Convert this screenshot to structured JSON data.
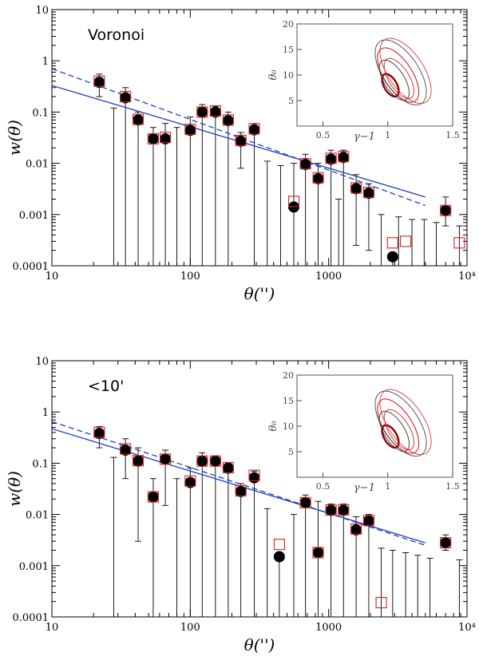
{
  "chart_data": [
    {
      "type": "scatter",
      "panel_label": "Voronoi",
      "xlabel": "θ('')",
      "ylabel": "w(θ)",
      "xscale": "log",
      "yscale": "log",
      "xlim": [
        10,
        10000
      ],
      "ylim": [
        0.0001,
        10
      ],
      "xtick_labels": [
        "10",
        "100",
        "1000",
        "10⁴"
      ],
      "xtick_values": [
        10,
        100,
        1000,
        10000
      ],
      "ytick_labels": [
        "0.0001",
        "0.001",
        "0.01",
        "0.1",
        "1",
        "10"
      ],
      "ytick_values": [
        0.0001,
        0.001,
        0.01,
        0.1,
        1,
        10
      ],
      "series": [
        {
          "name": "filled circles",
          "color": "#000000",
          "points": [
            {
              "x": 22,
              "y": 0.38,
              "lo": 0.2,
              "hi": 0.55
            },
            {
              "x": 34,
              "y": 0.19,
              "lo": 0.0001,
              "hi": 0.3
            },
            {
              "x": 42,
              "y": 0.07,
              "lo": 0.0001,
              "hi": 0.1
            },
            {
              "x": 54,
              "y": 0.03,
              "lo": 0.0001,
              "hi": 0.05
            },
            {
              "x": 66,
              "y": 0.03,
              "lo": 0.0001,
              "hi": 0.06
            },
            {
              "x": 100,
              "y": 0.044,
              "lo": 0.0001,
              "hi": 0.08
            },
            {
              "x": 122,
              "y": 0.1,
              "lo": 0.0001,
              "hi": 0.14
            },
            {
              "x": 152,
              "y": 0.1,
              "lo": 0.0001,
              "hi": 0.13
            },
            {
              "x": 188,
              "y": 0.068,
              "lo": 0.0001,
              "hi": 0.1
            },
            {
              "x": 232,
              "y": 0.027,
              "lo": 0.008,
              "hi": 0.04
            },
            {
              "x": 290,
              "y": 0.045,
              "lo": 0.0001,
              "hi": 0.06
            },
            {
              "x": 560,
              "y": 0.0014,
              "lo": 0.0001,
              "hi": 0.01
            },
            {
              "x": 680,
              "y": 0.0095,
              "lo": 0.0001,
              "hi": 0.015
            },
            {
              "x": 840,
              "y": 0.005,
              "lo": 0.0001,
              "hi": 0.01
            },
            {
              "x": 1040,
              "y": 0.012,
              "lo": 0.0001,
              "hi": 0.018
            },
            {
              "x": 1280,
              "y": 0.013,
              "lo": 0.0001,
              "hi": 0.018
            },
            {
              "x": 1580,
              "y": 0.0032,
              "lo": 0.00025,
              "hi": 0.006
            },
            {
              "x": 1950,
              "y": 0.0026,
              "lo": 0.0002,
              "hi": 0.004
            },
            {
              "x": 2900,
              "y": 0.00015,
              "lo": 0.0001,
              "hi": 0.00015
            },
            {
              "x": 7000,
              "y": 0.0012,
              "lo": 0.0006,
              "hi": 0.0022
            }
          ]
        },
        {
          "name": "open squares",
          "color": "#d62020",
          "points": [
            {
              "x": 22,
              "y": 0.4
            },
            {
              "x": 34,
              "y": 0.2
            },
            {
              "x": 42,
              "y": 0.072
            },
            {
              "x": 54,
              "y": 0.03
            },
            {
              "x": 66,
              "y": 0.032
            },
            {
              "x": 100,
              "y": 0.046
            },
            {
              "x": 122,
              "y": 0.1
            },
            {
              "x": 152,
              "y": 0.105
            },
            {
              "x": 188,
              "y": 0.07
            },
            {
              "x": 232,
              "y": 0.028
            },
            {
              "x": 290,
              "y": 0.047
            },
            {
              "x": 560,
              "y": 0.0018
            },
            {
              "x": 680,
              "y": 0.0098
            },
            {
              "x": 840,
              "y": 0.0052
            },
            {
              "x": 1040,
              "y": 0.0125
            },
            {
              "x": 1280,
              "y": 0.0135
            },
            {
              "x": 1580,
              "y": 0.0033
            },
            {
              "x": 1950,
              "y": 0.0027
            },
            {
              "x": 2900,
              "y": 0.00028
            },
            {
              "x": 3600,
              "y": 0.0003
            },
            {
              "x": 7000,
              "y": 0.0012
            },
            {
              "x": 8800,
              "y": 0.00028
            }
          ]
        }
      ],
      "bare_error_bars": [
        {
          "x": 28,
          "hi": 0.12
        },
        {
          "x": 80,
          "hi": 0.05
        },
        {
          "x": 360,
          "hi": 0.011
        },
        {
          "x": 450,
          "hi": 0.009
        },
        {
          "x": 1180,
          "hi": 0.002
        },
        {
          "x": 2400,
          "hi": 0.001
        },
        {
          "x": 3200,
          "hi": 0.0009
        },
        {
          "x": 4000,
          "hi": 0.0008
        },
        {
          "x": 4900,
          "hi": 0.0008
        },
        {
          "x": 6000,
          "hi": 0.0007
        },
        {
          "x": 8800,
          "hi": 0.0006
        }
      ],
      "fits": [
        {
          "name": "solid fit",
          "style": "solid",
          "color": "#1f3fbf",
          "x": [
            10,
            5000
          ],
          "y": [
            0.33,
            0.0022
          ]
        },
        {
          "name": "dashed fit",
          "style": "dashed",
          "color": "#1f3fbf",
          "x": [
            10,
            5000
          ],
          "y": [
            0.7,
            0.0015
          ]
        }
      ],
      "inset": {
        "xlabel": "γ−1",
        "ylabel": "θ₀",
        "xlim": [
          0.3,
          1.5
        ],
        "ylim": [
          0,
          20
        ],
        "xtick_labels": [
          "0.5",
          "1",
          "1.5"
        ],
        "xtick_values": [
          0.5,
          1,
          1.5
        ],
        "ytick_labels": [
          "5",
          "10",
          "15",
          "20"
        ],
        "ytick_values": [
          5,
          10,
          15,
          20
        ],
        "contour_colors": [
          "#8b0000",
          "#333333",
          "#d62020"
        ]
      }
    },
    {
      "type": "scatter",
      "panel_label": "<10'",
      "xlabel": "θ('')",
      "ylabel": "w(θ)",
      "xscale": "log",
      "yscale": "log",
      "xlim": [
        10,
        10000
      ],
      "ylim": [
        0.0001,
        10
      ],
      "xtick_labels": [
        "10",
        "100",
        "1000",
        "10⁴"
      ],
      "xtick_values": [
        10,
        100,
        1000,
        10000
      ],
      "ytick_labels": [
        "0.0001",
        "0.001",
        "0.01",
        "0.1",
        "1",
        "10"
      ],
      "ytick_values": [
        0.0001,
        0.001,
        0.01,
        0.1,
        1,
        10
      ],
      "series": [
        {
          "name": "filled circles",
          "color": "#000000",
          "points": [
            {
              "x": 22,
              "y": 0.38,
              "lo": 0.2,
              "hi": 0.52
            },
            {
              "x": 34,
              "y": 0.18,
              "lo": 0.05,
              "hi": 0.3
            },
            {
              "x": 42,
              "y": 0.11,
              "lo": 0.003,
              "hi": 0.2
            },
            {
              "x": 54,
              "y": 0.022,
              "lo": 0.0001,
              "hi": 0.05
            },
            {
              "x": 66,
              "y": 0.12,
              "lo": 0.015,
              "hi": 0.18
            },
            {
              "x": 100,
              "y": 0.042,
              "lo": 0.0001,
              "hi": 0.08
            },
            {
              "x": 122,
              "y": 0.11,
              "lo": 0.0001,
              "hi": 0.16
            },
            {
              "x": 152,
              "y": 0.11,
              "lo": 0.0001,
              "hi": 0.14
            },
            {
              "x": 188,
              "y": 0.08,
              "lo": 0.0001,
              "hi": 0.1
            },
            {
              "x": 232,
              "y": 0.028,
              "lo": 0.0001,
              "hi": 0.04
            },
            {
              "x": 290,
              "y": 0.052,
              "lo": 0.0001,
              "hi": 0.07
            },
            {
              "x": 440,
              "y": 0.0015,
              "lo": 0.0001,
              "hi": 0.0015
            },
            {
              "x": 680,
              "y": 0.017,
              "lo": 0.0001,
              "hi": 0.024
            },
            {
              "x": 840,
              "y": 0.0018,
              "lo": 0.0001,
              "hi": 0.018
            },
            {
              "x": 1040,
              "y": 0.012,
              "lo": 0.0001,
              "hi": 0.016
            },
            {
              "x": 1280,
              "y": 0.012,
              "lo": 0.0001,
              "hi": 0.016
            },
            {
              "x": 1580,
              "y": 0.005,
              "lo": 0.0001,
              "hi": 0.009
            },
            {
              "x": 1950,
              "y": 0.0075,
              "lo": 0.0001,
              "hi": 0.01
            },
            {
              "x": 7000,
              "y": 0.0028,
              "lo": 0.002,
              "hi": 0.004
            }
          ]
        },
        {
          "name": "open squares",
          "color": "#d62020",
          "points": [
            {
              "x": 22,
              "y": 0.4
            },
            {
              "x": 34,
              "y": 0.19
            },
            {
              "x": 42,
              "y": 0.112
            },
            {
              "x": 54,
              "y": 0.022
            },
            {
              "x": 66,
              "y": 0.12
            },
            {
              "x": 100,
              "y": 0.045
            },
            {
              "x": 122,
              "y": 0.11
            },
            {
              "x": 152,
              "y": 0.11
            },
            {
              "x": 188,
              "y": 0.082
            },
            {
              "x": 232,
              "y": 0.029
            },
            {
              "x": 290,
              "y": 0.058
            },
            {
              "x": 440,
              "y": 0.0026
            },
            {
              "x": 680,
              "y": 0.017
            },
            {
              "x": 840,
              "y": 0.0018
            },
            {
              "x": 1040,
              "y": 0.0122
            },
            {
              "x": 1280,
              "y": 0.0123
            },
            {
              "x": 1580,
              "y": 0.0052
            },
            {
              "x": 1950,
              "y": 0.0076
            },
            {
              "x": 2400,
              "y": 0.00019
            },
            {
              "x": 7000,
              "y": 0.0028
            }
          ]
        }
      ],
      "bare_error_bars": [
        {
          "x": 28,
          "hi": 0.13
        },
        {
          "x": 80,
          "hi": 0.05
        },
        {
          "x": 360,
          "hi": 0.013
        },
        {
          "x": 560,
          "hi": 0.01
        },
        {
          "x": 2400,
          "hi": 0.0022
        },
        {
          "x": 2900,
          "hi": 0.002
        },
        {
          "x": 3600,
          "hi": 0.0018
        },
        {
          "x": 4400,
          "hi": 0.0016
        },
        {
          "x": 5400,
          "hi": 0.0014
        },
        {
          "x": 8800,
          "hi": 0.0013
        }
      ],
      "fits": [
        {
          "name": "solid fit",
          "style": "solid",
          "color": "#1f3fbf",
          "x": [
            10,
            5000
          ],
          "y": [
            0.47,
            0.0028
          ]
        },
        {
          "name": "dashed fit",
          "style": "dashed",
          "color": "#1f3fbf",
          "x": [
            10,
            5000
          ],
          "y": [
            0.65,
            0.0025
          ]
        }
      ],
      "inset": {
        "xlabel": "γ−1",
        "ylabel": "θ₀",
        "xlim": [
          0.3,
          1.5
        ],
        "ylim": [
          0,
          20
        ],
        "xtick_labels": [
          "0.5",
          "1",
          "1.5"
        ],
        "xtick_values": [
          0.5,
          1,
          1.5
        ],
        "ytick_labels": [
          "5",
          "10",
          "15",
          "20"
        ],
        "ytick_values": [
          5,
          10,
          15,
          20
        ],
        "contour_colors": [
          "#8b0000",
          "#333333",
          "#d62020"
        ]
      }
    }
  ]
}
